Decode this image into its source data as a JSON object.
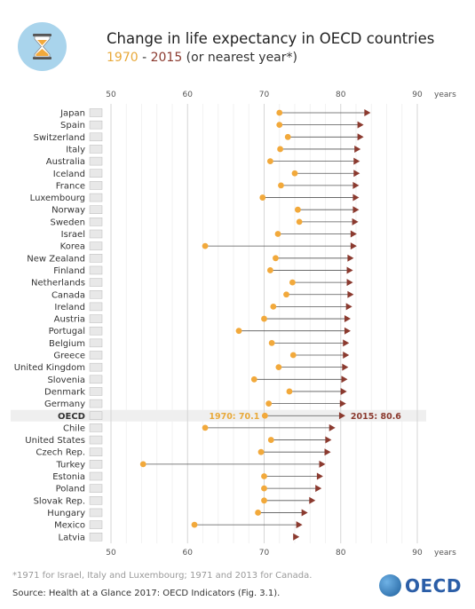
{
  "header": {
    "title": "Change in life expectancy in OECD countries",
    "subtitle_start": "1970",
    "subtitle_sep": " - ",
    "subtitle_end": "2015",
    "subtitle_rest": " (or nearest year*)"
  },
  "icon": "hourglass-icon",
  "colors": {
    "y1970_dot": "#f2a93b",
    "y2015_arrow": "#8b3a2f",
    "line": "#555555",
    "logo_circle": "#a9d4ec",
    "highlight_row": "#efefef"
  },
  "footnote": "*1971 for Israel, Italy and Luxembourg; 1971 and 2013 for Canada.",
  "source": "Source: Health at a Glance 2017: OECD Indicators (Fig. 3.1).",
  "brand": "OECD",
  "chart_data": {
    "type": "dumbbell",
    "axis": {
      "unit_label": "years",
      "xlim": [
        50,
        90
      ],
      "ticks": [
        50,
        60,
        70,
        80,
        90
      ],
      "grid": true,
      "position": "top and bottom"
    },
    "series": [
      {
        "name": "1970",
        "color": "#f2a93b"
      },
      {
        "name": "2015",
        "color": "#8b3a2f"
      }
    ],
    "highlight_annotations": {
      "start_label": "1970: 70.1",
      "end_label": "2015: 80.6"
    },
    "rows": [
      {
        "country": "Japan",
        "y1970": 72.0,
        "y2015": 83.9
      },
      {
        "country": "Spain",
        "y1970": 72.0,
        "y2015": 83.0
      },
      {
        "country": "Switzerland",
        "y1970": 73.1,
        "y2015": 83.0
      },
      {
        "country": "Italy",
        "y1970": 72.1,
        "y2015": 82.6
      },
      {
        "country": "Australia",
        "y1970": 70.8,
        "y2015": 82.5
      },
      {
        "country": "Iceland",
        "y1970": 74.0,
        "y2015": 82.5
      },
      {
        "country": "France",
        "y1970": 72.2,
        "y2015": 82.4
      },
      {
        "country": "Luxembourg",
        "y1970": 69.8,
        "y2015": 82.4
      },
      {
        "country": "Norway",
        "y1970": 74.4,
        "y2015": 82.4
      },
      {
        "country": "Sweden",
        "y1970": 74.6,
        "y2015": 82.3
      },
      {
        "country": "Israel",
        "y1970": 71.8,
        "y2015": 82.1
      },
      {
        "country": "Korea",
        "y1970": 62.3,
        "y2015": 82.1
      },
      {
        "country": "New Zealand",
        "y1970": 71.5,
        "y2015": 81.7
      },
      {
        "country": "Finland",
        "y1970": 70.8,
        "y2015": 81.6
      },
      {
        "country": "Netherlands",
        "y1970": 73.7,
        "y2015": 81.6
      },
      {
        "country": "Canada",
        "y1970": 72.9,
        "y2015": 81.7
      },
      {
        "country": "Ireland",
        "y1970": 71.2,
        "y2015": 81.5
      },
      {
        "country": "Austria",
        "y1970": 70.0,
        "y2015": 81.3
      },
      {
        "country": "Portugal",
        "y1970": 66.7,
        "y2015": 81.3
      },
      {
        "country": "Belgium",
        "y1970": 71.0,
        "y2015": 81.1
      },
      {
        "country": "Greece",
        "y1970": 73.8,
        "y2015": 81.1
      },
      {
        "country": "United Kingdom",
        "y1970": 71.9,
        "y2015": 81.0
      },
      {
        "country": "Slovenia",
        "y1970": 68.7,
        "y2015": 80.9
      },
      {
        "country": "Denmark",
        "y1970": 73.3,
        "y2015": 80.8
      },
      {
        "country": "Germany",
        "y1970": 70.6,
        "y2015": 80.7
      },
      {
        "country": "OECD",
        "y1970": 70.1,
        "y2015": 80.6,
        "highlight": true
      },
      {
        "country": "Chile",
        "y1970": 62.3,
        "y2015": 79.3
      },
      {
        "country": "United States",
        "y1970": 70.9,
        "y2015": 78.8
      },
      {
        "country": "Czech Rep.",
        "y1970": 69.6,
        "y2015": 78.7
      },
      {
        "country": "Turkey",
        "y1970": 54.2,
        "y2015": 78.0
      },
      {
        "country": "Estonia",
        "y1970": 70.0,
        "y2015": 77.7
      },
      {
        "country": "Poland",
        "y1970": 70.0,
        "y2015": 77.5
      },
      {
        "country": "Slovak Rep.",
        "y1970": 70.0,
        "y2015": 76.7
      },
      {
        "country": "Hungary",
        "y1970": 69.2,
        "y2015": 75.7
      },
      {
        "country": "Mexico",
        "y1970": 60.9,
        "y2015": 75.0
      },
      {
        "country": "Latvia",
        "y1970": null,
        "y2015": 74.6
      }
    ]
  }
}
